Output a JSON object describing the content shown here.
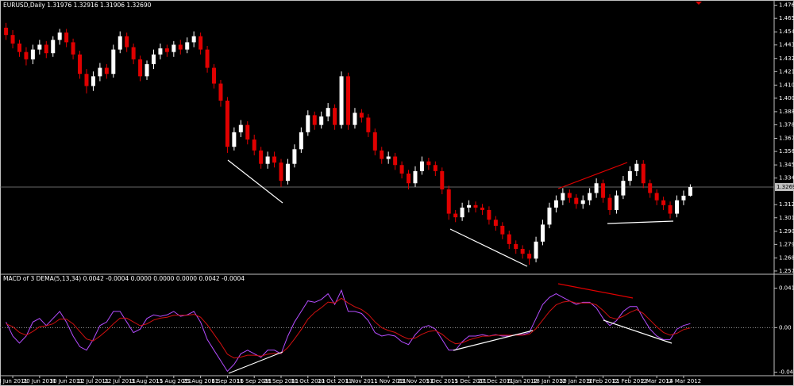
{
  "chart_data": [
    {
      "type": "candlestick",
      "title": "EURUSD,Daily  1.31976 1.32916 1.31906 1.32690",
      "up_color": "#ffffff",
      "down_color": "#e00000",
      "xlim": [
        -0.9,
        114.5
      ],
      "xticks": [
        {
          "value": 1,
          "label": "8 Jun 2011"
        },
        {
          "value": 5,
          "label": "20 Jun 2011"
        },
        {
          "value": 9,
          "label": "30 Jun 2011"
        },
        {
          "value": 13,
          "label": "12 Jul 2011"
        },
        {
          "value": 17,
          "label": "22 Jul 2011"
        },
        {
          "value": 21,
          "label": "3 Aug 2011"
        },
        {
          "value": 25,
          "label": "15 Aug 2011"
        },
        {
          "value": 29,
          "label": "25 Aug 2011"
        },
        {
          "value": 33,
          "label": "6 Sep 2011"
        },
        {
          "value": 37,
          "label": "16 Sep 2011"
        },
        {
          "value": 41,
          "label": "28 Sep 2011"
        },
        {
          "value": 45,
          "label": "10 Oct 2011"
        },
        {
          "value": 49,
          "label": "20 Oct 2011"
        },
        {
          "value": 53,
          "label": "1 Nov 2011"
        },
        {
          "value": 57,
          "label": "11 Nov 2011"
        },
        {
          "value": 61,
          "label": "23 Nov 2011"
        },
        {
          "value": 65,
          "label": "5 Dec 2011"
        },
        {
          "value": 69,
          "label": "15 Dec 2011"
        },
        {
          "value": 73,
          "label": "27 Dec 2011"
        },
        {
          "value": 77,
          "label": "6 Jan 2012"
        },
        {
          "value": 81,
          "label": "18 Jan 2012"
        },
        {
          "value": 85,
          "label": "30 Jan 2012"
        },
        {
          "value": 89,
          "label": "9 Feb 2012"
        },
        {
          "value": 93,
          "label": "21 Feb 2012"
        },
        {
          "value": 97,
          "label": "2 Mar 2012"
        },
        {
          "value": 101,
          "label": "14 Mar 2012"
        }
      ],
      "ylim": [
        1.2558,
        1.4782
      ],
      "yticks": [
        {
          "value": 1.4765,
          "label": "1.47650"
        },
        {
          "value": 1.4657,
          "label": "1.46570"
        },
        {
          "value": 1.4546,
          "label": "1.45460"
        },
        {
          "value": 1.4438,
          "label": "1.44380"
        },
        {
          "value": 1.4327,
          "label": "1.43270"
        },
        {
          "value": 1.4219,
          "label": "1.42190"
        },
        {
          "value": 1.4108,
          "label": "1.41080"
        },
        {
          "value": 1.4,
          "label": "1.40000"
        },
        {
          "value": 1.3889,
          "label": "1.38890"
        },
        {
          "value": 1.3781,
          "label": "1.37810"
        },
        {
          "value": 1.367,
          "label": "1.36700"
        },
        {
          "value": 1.3562,
          "label": "1.35620"
        },
        {
          "value": 1.3451,
          "label": "1.34510"
        },
        {
          "value": 1.3343,
          "label": "1.33430"
        },
        {
          "value": 1.3124,
          "label": "1.31240"
        },
        {
          "value": 1.3016,
          "label": "1.30160"
        },
        {
          "value": 1.2905,
          "label": "1.29050"
        },
        {
          "value": 1.2797,
          "label": "1.27970"
        },
        {
          "value": 1.2686,
          "label": "1.26860"
        },
        {
          "value": 1.2578,
          "label": "1.25780"
        }
      ],
      "last_price": {
        "value": 1.3269,
        "label": "1.32690"
      },
      "ohlc": [
        [
          1.458,
          1.462,
          1.448,
          1.452
        ],
        [
          1.452,
          1.456,
          1.441,
          1.445
        ],
        [
          1.445,
          1.448,
          1.434,
          1.438
        ],
        [
          1.438,
          1.442,
          1.427,
          1.432
        ],
        [
          1.432,
          1.444,
          1.428,
          1.44
        ],
        [
          1.44,
          1.448,
          1.436,
          1.444
        ],
        [
          1.444,
          1.447,
          1.433,
          1.437
        ],
        [
          1.437,
          1.451,
          1.434,
          1.448
        ],
        [
          1.448,
          1.457,
          1.444,
          1.454
        ],
        [
          1.454,
          1.457,
          1.442,
          1.446
        ],
        [
          1.446,
          1.449,
          1.432,
          1.436
        ],
        [
          1.436,
          1.439,
          1.416,
          1.42
        ],
        [
          1.42,
          1.424,
          1.404,
          1.41
        ],
        [
          1.41,
          1.422,
          1.406,
          1.418
        ],
        [
          1.418,
          1.429,
          1.414,
          1.425
        ],
        [
          1.425,
          1.428,
          1.416,
          1.42
        ],
        [
          1.42,
          1.444,
          1.417,
          1.44
        ],
        [
          1.44,
          1.455,
          1.437,
          1.451
        ],
        [
          1.451,
          1.454,
          1.438,
          1.442
        ],
        [
          1.442,
          1.445,
          1.428,
          1.432
        ],
        [
          1.432,
          1.435,
          1.414,
          1.418
        ],
        [
          1.418,
          1.431,
          1.415,
          1.428
        ],
        [
          1.428,
          1.44,
          1.424,
          1.436
        ],
        [
          1.436,
          1.445,
          1.432,
          1.441
        ],
        [
          1.441,
          1.444,
          1.434,
          1.438
        ],
        [
          1.438,
          1.447,
          1.434,
          1.444
        ],
        [
          1.444,
          1.448,
          1.436,
          1.44
        ],
        [
          1.44,
          1.45,
          1.437,
          1.446
        ],
        [
          1.446,
          1.455,
          1.442,
          1.451
        ],
        [
          1.451,
          1.454,
          1.436,
          1.44
        ],
        [
          1.44,
          1.443,
          1.421,
          1.425
        ],
        [
          1.425,
          1.428,
          1.408,
          1.412
        ],
        [
          1.412,
          1.415,
          1.393,
          1.398
        ],
        [
          1.398,
          1.401,
          1.355,
          1.36
        ],
        [
          1.36,
          1.376,
          1.357,
          1.372
        ],
        [
          1.372,
          1.382,
          1.368,
          1.378
        ],
        [
          1.378,
          1.381,
          1.362,
          1.366
        ],
        [
          1.366,
          1.37,
          1.353,
          1.357
        ],
        [
          1.357,
          1.36,
          1.342,
          1.346
        ],
        [
          1.346,
          1.356,
          1.342,
          1.352
        ],
        [
          1.352,
          1.356,
          1.343,
          1.347
        ],
        [
          1.347,
          1.35,
          1.327,
          1.332
        ],
        [
          1.332,
          1.35,
          1.329,
          1.346
        ],
        [
          1.346,
          1.362,
          1.343,
          1.358
        ],
        [
          1.358,
          1.376,
          1.355,
          1.372
        ],
        [
          1.372,
          1.39,
          1.369,
          1.386
        ],
        [
          1.386,
          1.389,
          1.374,
          1.378
        ],
        [
          1.378,
          1.389,
          1.375,
          1.385
        ],
        [
          1.385,
          1.396,
          1.381,
          1.392
        ],
        [
          1.392,
          1.395,
          1.374,
          1.378
        ],
        [
          1.378,
          1.422,
          1.375,
          1.418
        ],
        [
          1.418,
          1.421,
          1.374,
          1.378
        ],
        [
          1.378,
          1.392,
          1.375,
          1.388
        ],
        [
          1.388,
          1.391,
          1.38,
          1.384
        ],
        [
          1.384,
          1.387,
          1.368,
          1.372
        ],
        [
          1.372,
          1.375,
          1.353,
          1.357
        ],
        [
          1.357,
          1.36,
          1.346,
          1.35
        ],
        [
          1.35,
          1.356,
          1.346,
          1.352
        ],
        [
          1.352,
          1.355,
          1.341,
          1.345
        ],
        [
          1.345,
          1.348,
          1.334,
          1.338
        ],
        [
          1.338,
          1.341,
          1.325,
          1.33
        ],
        [
          1.33,
          1.344,
          1.327,
          1.34
        ],
        [
          1.34,
          1.352,
          1.337,
          1.348
        ],
        [
          1.348,
          1.351,
          1.341,
          1.345
        ],
        [
          1.345,
          1.348,
          1.336,
          1.34
        ],
        [
          1.34,
          1.343,
          1.321,
          1.325
        ],
        [
          1.325,
          1.328,
          1.3,
          1.305
        ],
        [
          1.305,
          1.308,
          1.298,
          1.302
        ],
        [
          1.302,
          1.314,
          1.299,
          1.31
        ],
        [
          1.31,
          1.316,
          1.306,
          1.312
        ],
        [
          1.312,
          1.315,
          1.306,
          1.31
        ],
        [
          1.31,
          1.313,
          1.304,
          1.308
        ],
        [
          1.308,
          1.311,
          1.296,
          1.3
        ],
        [
          1.3,
          1.303,
          1.291,
          1.295
        ],
        [
          1.295,
          1.298,
          1.284,
          1.288
        ],
        [
          1.288,
          1.291,
          1.276,
          1.28
        ],
        [
          1.28,
          1.283,
          1.272,
          1.276
        ],
        [
          1.276,
          1.279,
          1.268,
          1.272
        ],
        [
          1.272,
          1.275,
          1.263,
          1.268
        ],
        [
          1.268,
          1.286,
          1.265,
          1.282
        ],
        [
          1.282,
          1.3,
          1.279,
          1.296
        ],
        [
          1.296,
          1.314,
          1.293,
          1.31
        ],
        [
          1.31,
          1.32,
          1.306,
          1.316
        ],
        [
          1.316,
          1.326,
          1.312,
          1.322
        ],
        [
          1.322,
          1.325,
          1.314,
          1.318
        ],
        [
          1.318,
          1.321,
          1.309,
          1.313
        ],
        [
          1.313,
          1.32,
          1.309,
          1.316
        ],
        [
          1.316,
          1.326,
          1.312,
          1.322
        ],
        [
          1.322,
          1.334,
          1.318,
          1.33
        ],
        [
          1.33,
          1.333,
          1.314,
          1.318
        ],
        [
          1.318,
          1.321,
          1.304,
          1.308
        ],
        [
          1.308,
          1.324,
          1.305,
          1.32
        ],
        [
          1.32,
          1.336,
          1.317,
          1.332
        ],
        [
          1.332,
          1.344,
          1.328,
          1.34
        ],
        [
          1.34,
          1.349,
          1.336,
          1.346
        ],
        [
          1.346,
          1.349,
          1.326,
          1.33
        ],
        [
          1.33,
          1.333,
          1.318,
          1.322
        ],
        [
          1.322,
          1.325,
          1.312,
          1.316
        ],
        [
          1.316,
          1.319,
          1.308,
          1.312
        ],
        [
          1.312,
          1.315,
          1.301,
          1.305
        ],
        [
          1.305,
          1.32,
          1.302,
          1.316
        ],
        [
          1.316,
          1.324,
          1.312,
          1.31976
        ],
        [
          1.31976,
          1.32916,
          1.31906,
          1.3269
        ]
      ]
    },
    {
      "type": "line",
      "title": "MACD of 3 DEMA(5,13,34) 0.0042 -0.0004 0.0000 0.0000 0.0000 0.0042 -0.0004",
      "ylim": [
        -0.049,
        0.0446
      ],
      "yticks": [
        0.0416,
        {
          "value": 0,
          "label": "0.00"
        },
        -0.047
      ],
      "zero_line": true,
      "series": [
        {
          "color": "#b44cff",
          "values": [
            0.0059,
            -0.0089,
            -0.0163,
            -0.0089,
            0.0059,
            0.0097,
            0.0022,
            0.0097,
            0.0171,
            0.0059,
            -0.0089,
            -0.0201,
            -0.0238,
            -0.0126,
            0.0022,
            0.0059,
            0.0171,
            0.0171,
            0.0059,
            -0.0052,
            -0.0015,
            0.0097,
            0.0134,
            0.0119,
            0.0134,
            0.0171,
            0.0119,
            0.0134,
            0.0171,
            0.0059,
            -0.0126,
            -0.0238,
            -0.0349,
            -0.0461,
            -0.0386,
            -0.0275,
            -0.0238,
            -0.0275,
            -0.0312,
            -0.0238,
            -0.0238,
            -0.0275,
            -0.0089,
            0.0059,
            0.0171,
            0.0282,
            0.0267,
            0.0297,
            0.0357,
            0.0245,
            0.0394,
            0.0171,
            0.0171,
            0.0149,
            0.0074,
            -0.0052,
            -0.0089,
            -0.0074,
            -0.0089,
            -0.0149,
            -0.0178,
            -0.0074,
            0,
            0.0022,
            -0.0015,
            -0.0126,
            -0.0238,
            -0.0238,
            -0.0149,
            -0.0089,
            -0.0089,
            -0.0074,
            -0.0089,
            -0.0074,
            -0.0089,
            -0.0089,
            -0.0074,
            -0.0074,
            -0.0052,
            0.0097,
            0.0245,
            0.0319,
            0.0357,
            0.0319,
            0.0282,
            0.0245,
            0.0267,
            0.0267,
            0.0208,
            0.0097,
            0.0022,
            0.0074,
            0.0171,
            0.0223,
            0.0223,
            0.0097,
            -0.0015,
            -0.0089,
            -0.0126,
            -0.0126,
            -0.0015,
            0.0022,
            0.0042
          ]
        },
        {
          "color": "#d01010",
          "values": [
            0.004,
            0.001,
            -0.005,
            -0.008,
            -0.004,
            0.001,
            0.002,
            0.004,
            0.009,
            0.009,
            0.004,
            -0.004,
            -0.012,
            -0.014,
            -0.009,
            -0.003,
            0.004,
            0.01,
            0.01,
            0.006,
            0.002,
            0.004,
            0.008,
            0.01,
            0.011,
            0.013,
            0.013,
            0.013,
            0.014,
            0.011,
            0.003,
            -0.007,
            -0.017,
            -0.028,
            -0.032,
            -0.031,
            -0.029,
            -0.029,
            -0.03,
            -0.028,
            -0.027,
            -0.027,
            -0.021,
            -0.012,
            -0.002,
            0.009,
            0.016,
            0.021,
            0.027,
            0.026,
            0.031,
            0.026,
            0.022,
            0.019,
            0.014,
            0.006,
            0,
            -0.003,
            -0.005,
            -0.009,
            -0.012,
            -0.011,
            -0.007,
            -0.004,
            -0.003,
            -0.007,
            -0.013,
            -0.017,
            -0.016,
            -0.013,
            -0.011,
            -0.009,
            -0.009,
            -0.008,
            -0.008,
            -0.008,
            -0.008,
            -0.008,
            -0.007,
            -0.001,
            0.008,
            0.017,
            0.024,
            0.027,
            0.028,
            0.026,
            0.026,
            0.026,
            0.024,
            0.018,
            0.011,
            0.009,
            0.012,
            0.016,
            0.019,
            0.015,
            0.008,
            0.001,
            -0.005,
            -0.008,
            -0.006,
            -0.002,
            -0.0004
          ]
        }
      ]
    }
  ]
}
